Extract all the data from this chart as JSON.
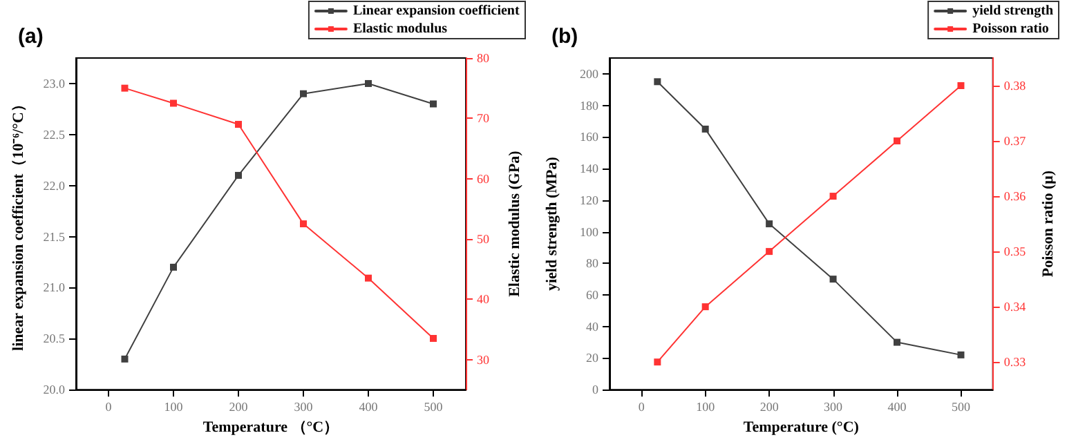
{
  "chart_data": [
    {
      "type": "line",
      "title": "(a)",
      "xlabel": "Temperature （°C）",
      "ylabel": "linear expansion coefficient（10⁻⁶/°C）",
      "y2label": "Elastic modulus (GPa)",
      "x": [
        25,
        100,
        200,
        300,
        400,
        500
      ],
      "series": [
        {
          "name": "Linear expansion coefficient",
          "color": "#404040",
          "values": [
            20.3,
            21.2,
            22.1,
            22.9,
            23.0,
            22.8
          ]
        },
        {
          "name": "Elastic modulus",
          "color": "#ff3333",
          "axis": "y2",
          "values": [
            75,
            72.5,
            69,
            52.5,
            43.5,
            33.5
          ]
        }
      ],
      "xlim": [
        -50,
        550
      ],
      "xticks": [
        0,
        100,
        200,
        300,
        400,
        500
      ],
      "ylim": [
        20,
        23.25
      ],
      "yticks": [
        {
          "value": 20,
          "label": "20.0"
        },
        {
          "value": 20.5,
          "label": "20.5"
        },
        {
          "value": 21,
          "label": "21.0"
        },
        {
          "value": 21.5,
          "label": "21.5"
        },
        {
          "value": 22,
          "label": "22.0"
        },
        {
          "value": 22.5,
          "label": "22.5"
        },
        {
          "value": 23,
          "label": "23.0"
        }
      ],
      "y2lim": [
        25,
        80
      ],
      "y2ticks": [
        30,
        40,
        50,
        60,
        70,
        80
      ],
      "grid": false,
      "legend": "top right",
      "marker": "square",
      "line_style": "solid"
    },
    {
      "type": "line",
      "title": "(b)",
      "xlabel": "Temperature (°C)",
      "ylabel": "yield strength (MPa)",
      "y2label": "Poisson ratio (μ)",
      "x": [
        25,
        100,
        200,
        300,
        400,
        500
      ],
      "series": [
        {
          "name": "yield strength",
          "color": "#404040",
          "values": [
            195,
            165,
            105,
            70,
            30,
            22
          ]
        },
        {
          "name": "Poisson ratio",
          "color": "#ff3333",
          "axis": "y2",
          "values": [
            0.33,
            0.34,
            0.35,
            0.36,
            0.37,
            0.38
          ]
        }
      ],
      "xlim": [
        -50,
        550
      ],
      "xticks": [
        0,
        100,
        200,
        300,
        400,
        500
      ],
      "ylim": [
        0,
        210
      ],
      "yticks": [
        0,
        20,
        40,
        60,
        80,
        100,
        120,
        140,
        160,
        180,
        200
      ],
      "y2lim": [
        0.325,
        0.385
      ],
      "y2ticks": [
        0.33,
        0.34,
        0.35,
        0.36,
        0.37,
        0.38
      ],
      "grid": false,
      "legend": "top right",
      "marker": "square",
      "line_style": "solid"
    }
  ]
}
